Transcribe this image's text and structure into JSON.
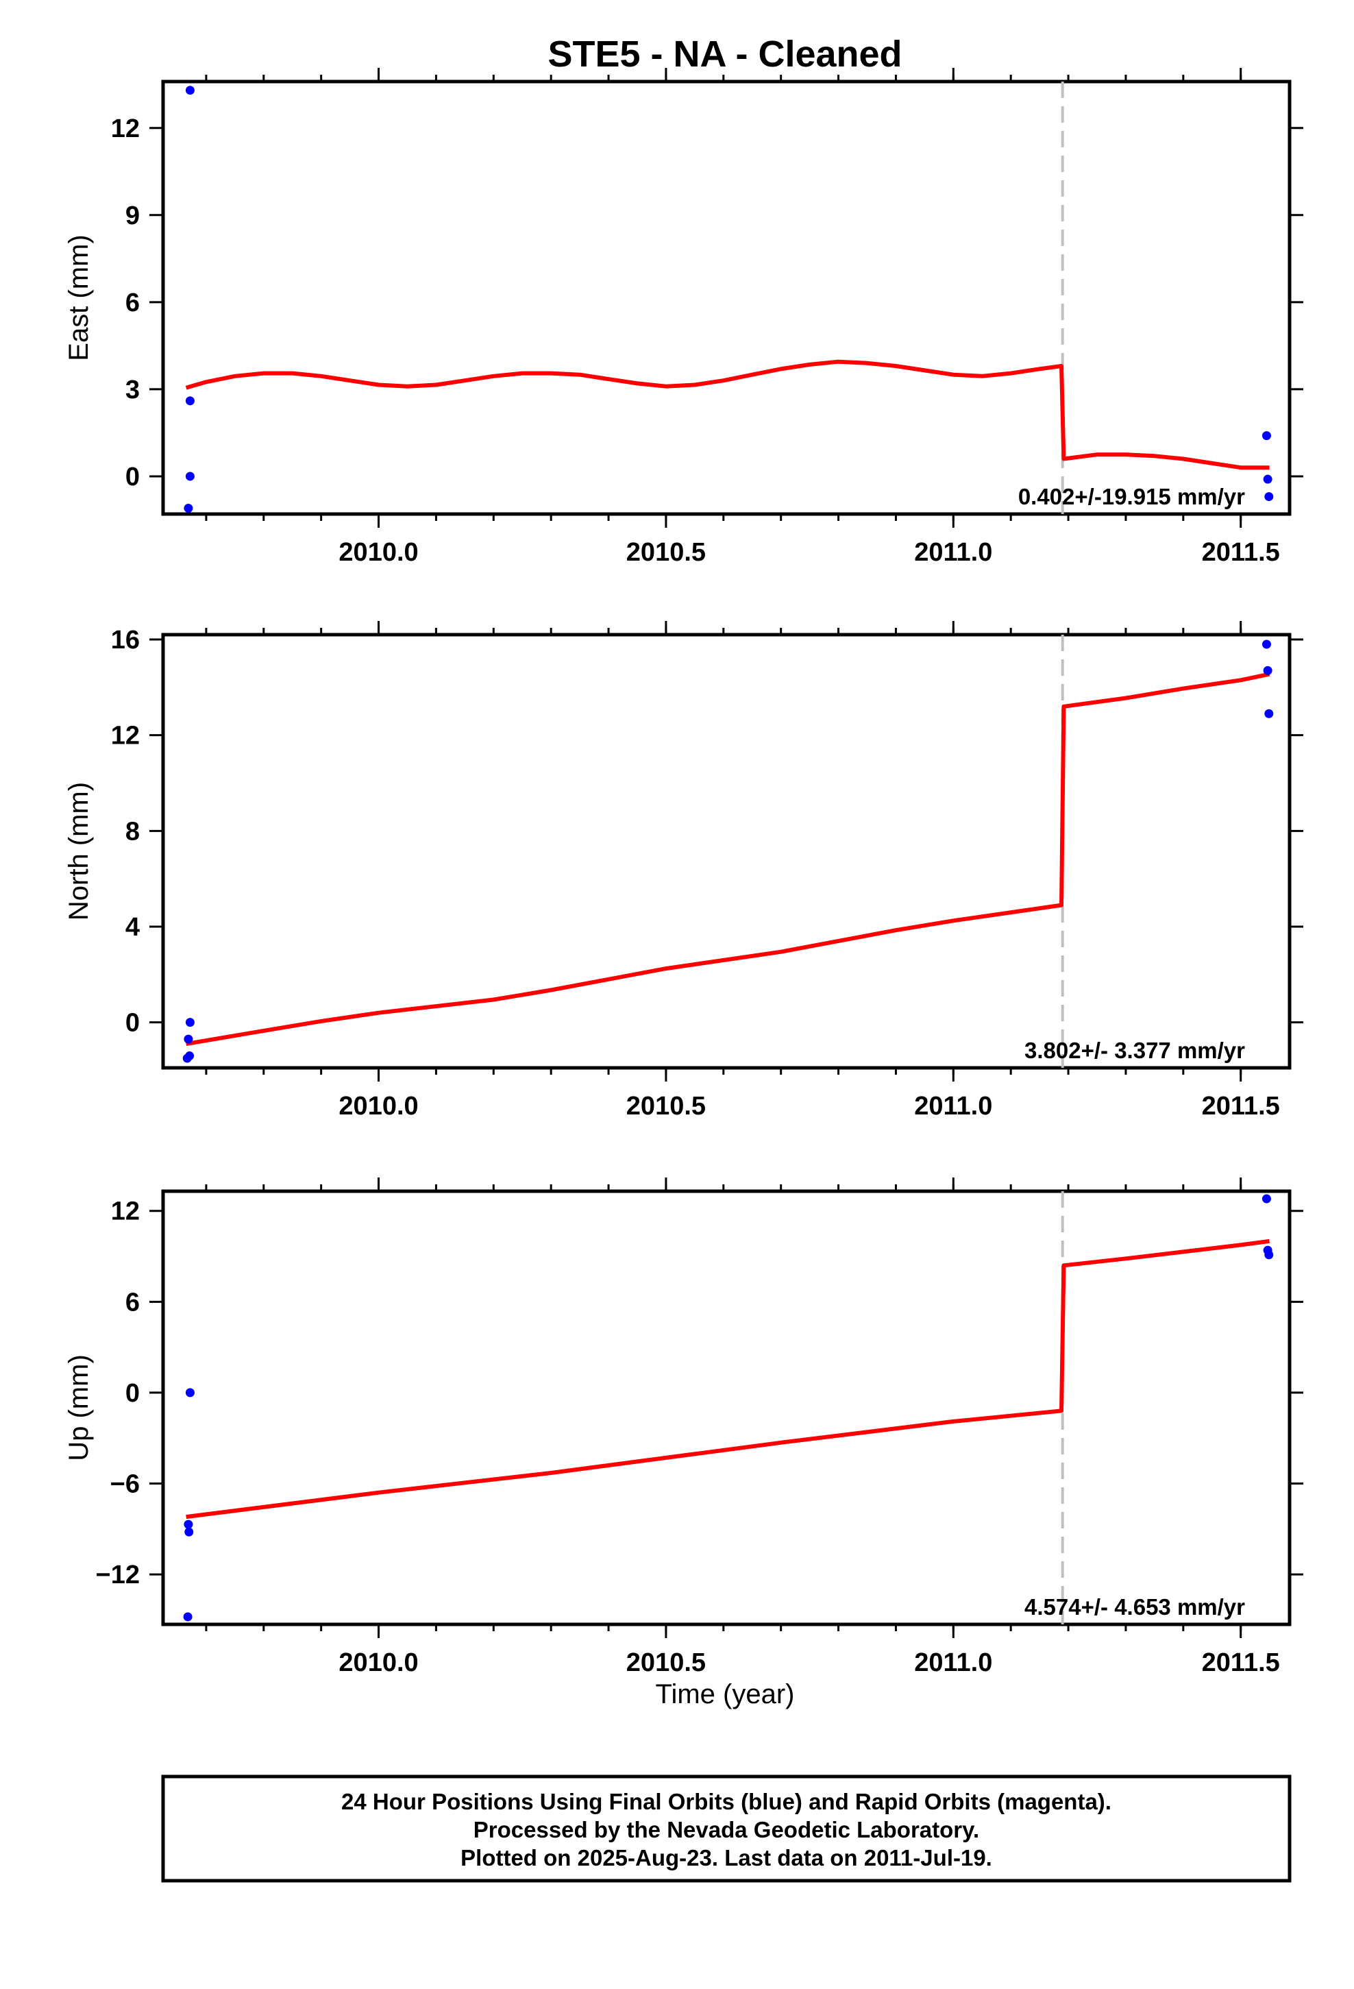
{
  "title": "STE5  - NA - Cleaned",
  "xlabel": "Time (year)",
  "footer": {
    "line1": "24 Hour Positions Using Final Orbits (blue) and Rapid Orbits (magenta).",
    "line2": "Processed by the Nevada Geodetic Laboratory.",
    "line3": "Plotted on 2025-Aug-23. Last data on 2011-Jul-19."
  },
  "colors": {
    "data": "#0000ff",
    "model": "#ff0000",
    "break": "#c0c0c0",
    "frame": "#000000"
  },
  "chart_data": [
    {
      "type": "scatter",
      "name": "east",
      "ylabel": "East (mm)",
      "rate_text": "0.402+/-19.915 mm/yr",
      "xlim": [
        2009.625,
        2011.585
      ],
      "ylim": [
        -1.3,
        13.6
      ],
      "yticks": [
        0,
        3,
        6,
        9,
        12
      ],
      "xticks": [
        2010.0,
        2010.5,
        2011.0,
        2011.5
      ],
      "break_x": 2011.19,
      "points": [
        [
          2009.672,
          13.3
        ],
        [
          2009.672,
          2.6
        ],
        [
          2009.672,
          0.0
        ],
        [
          2009.669,
          -1.1
        ],
        [
          2011.545,
          1.4
        ],
        [
          2011.547,
          -0.1
        ],
        [
          2011.549,
          -0.7
        ]
      ],
      "model": [
        [
          2009.665,
          3.05
        ],
        [
          2009.7,
          3.25
        ],
        [
          2009.75,
          3.45
        ],
        [
          2009.8,
          3.55
        ],
        [
          2009.85,
          3.55
        ],
        [
          2009.9,
          3.45
        ],
        [
          2009.95,
          3.3
        ],
        [
          2010.0,
          3.15
        ],
        [
          2010.05,
          3.1
        ],
        [
          2010.1,
          3.15
        ],
        [
          2010.15,
          3.3
        ],
        [
          2010.2,
          3.45
        ],
        [
          2010.25,
          3.55
        ],
        [
          2010.3,
          3.55
        ],
        [
          2010.35,
          3.5
        ],
        [
          2010.4,
          3.35
        ],
        [
          2010.45,
          3.2
        ],
        [
          2010.5,
          3.1
        ],
        [
          2010.55,
          3.15
        ],
        [
          2010.6,
          3.3
        ],
        [
          2010.65,
          3.5
        ],
        [
          2010.7,
          3.7
        ],
        [
          2010.75,
          3.85
        ],
        [
          2010.8,
          3.95
        ],
        [
          2010.85,
          3.9
        ],
        [
          2010.9,
          3.8
        ],
        [
          2010.95,
          3.65
        ],
        [
          2011.0,
          3.5
        ],
        [
          2011.05,
          3.45
        ],
        [
          2011.1,
          3.55
        ],
        [
          2011.15,
          3.7
        ],
        [
          2011.188,
          3.8
        ],
        [
          2011.192,
          0.6
        ],
        [
          2011.25,
          0.75
        ],
        [
          2011.3,
          0.75
        ],
        [
          2011.35,
          0.7
        ],
        [
          2011.4,
          0.6
        ],
        [
          2011.45,
          0.45
        ],
        [
          2011.5,
          0.3
        ],
        [
          2011.55,
          0.3
        ]
      ]
    },
    {
      "type": "scatter",
      "name": "north",
      "ylabel": "North (mm)",
      "rate_text": "3.802+/- 3.377 mm/yr",
      "xlim": [
        2009.625,
        2011.585
      ],
      "ylim": [
        -1.9,
        16.2
      ],
      "yticks": [
        0,
        4,
        8,
        12,
        16
      ],
      "xticks": [
        2010.0,
        2010.5,
        2011.0,
        2011.5
      ],
      "break_x": 2011.19,
      "points": [
        [
          2009.672,
          0.0
        ],
        [
          2009.669,
          -0.7
        ],
        [
          2009.671,
          -1.4
        ],
        [
          2009.667,
          -1.5
        ],
        [
          2011.545,
          15.8
        ],
        [
          2011.547,
          14.7
        ],
        [
          2011.549,
          12.9
        ]
      ],
      "model": [
        [
          2009.665,
          -0.9
        ],
        [
          2009.8,
          -0.35
        ],
        [
          2009.9,
          0.05
        ],
        [
          2010.0,
          0.4
        ],
        [
          2010.2,
          0.95
        ],
        [
          2010.3,
          1.35
        ],
        [
          2010.4,
          1.8
        ],
        [
          2010.5,
          2.25
        ],
        [
          2010.7,
          2.95
        ],
        [
          2010.8,
          3.4
        ],
        [
          2010.9,
          3.85
        ],
        [
          2011.0,
          4.25
        ],
        [
          2011.188,
          4.9
        ],
        [
          2011.192,
          13.2
        ],
        [
          2011.3,
          13.55
        ],
        [
          2011.4,
          13.95
        ],
        [
          2011.5,
          14.3
        ],
        [
          2011.55,
          14.55
        ]
      ]
    },
    {
      "type": "scatter",
      "name": "up",
      "ylabel": "Up (mm)",
      "xlabel": "Time (year)",
      "rate_text": "4.574+/- 4.653 mm/yr",
      "xlim": [
        2009.625,
        2011.585
      ],
      "ylim": [
        -15.3,
        13.3
      ],
      "yticks": [
        -12,
        -6,
        0,
        6,
        12
      ],
      "ytick_labels": [
        "−12",
        "−6",
        "0",
        "6",
        "12"
      ],
      "xticks": [
        2010.0,
        2010.5,
        2011.0,
        2011.5
      ],
      "break_x": 2011.19,
      "points": [
        [
          2009.672,
          0.0
        ],
        [
          2009.669,
          -8.7
        ],
        [
          2009.67,
          -9.2
        ],
        [
          2009.668,
          -14.8
        ],
        [
          2011.545,
          12.8
        ],
        [
          2011.547,
          9.4
        ],
        [
          2011.549,
          9.1
        ]
      ],
      "model": [
        [
          2009.665,
          -8.2
        ],
        [
          2010.0,
          -6.6
        ],
        [
          2010.3,
          -5.3
        ],
        [
          2010.5,
          -4.3
        ],
        [
          2010.7,
          -3.3
        ],
        [
          2011.0,
          -1.9
        ],
        [
          2011.188,
          -1.2
        ],
        [
          2011.192,
          8.4
        ],
        [
          2011.3,
          8.85
        ],
        [
          2011.4,
          9.3
        ],
        [
          2011.5,
          9.75
        ],
        [
          2011.55,
          10.0
        ]
      ]
    }
  ]
}
